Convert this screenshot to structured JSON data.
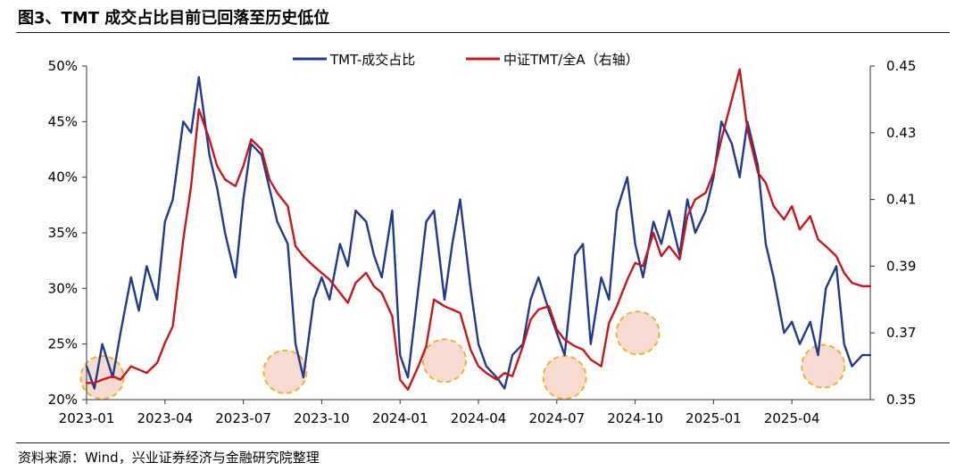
{
  "title": "图3、TMT 成交占比目前已回落至历史低位",
  "source": "资料来源：Wind，兴业证券经济与金融研究院整理",
  "colors": {
    "tmt": "#1f3a8f",
    "ratio": "#c8161d",
    "highlight_fill": "#f6d2c4",
    "highlight_stroke": "#f0b233"
  },
  "chart_data": {
    "type": "line",
    "x_ticks": [
      "2023-01",
      "2023-04",
      "2023-07",
      "2023-10",
      "2024-01",
      "2024-04",
      "2024-07",
      "2024-10",
      "2025-01",
      "2025-04"
    ],
    "x_range_months": [
      0,
      30
    ],
    "y_left": {
      "min": 0.2,
      "max": 0.5,
      "ticks": [
        "50%",
        "45%",
        "40%",
        "35%",
        "30%",
        "25%",
        "20%"
      ]
    },
    "y_right": {
      "min": 0.35,
      "max": 0.45,
      "ticks": [
        "0.45",
        "0.43",
        "0.41",
        "0.39",
        "0.37",
        "0.35"
      ]
    },
    "series": [
      {
        "name": "TMT-成交占比",
        "axis": "left",
        "x": [
          0,
          0.3,
          0.6,
          1.0,
          1.3,
          1.7,
          2.0,
          2.3,
          2.7,
          3.0,
          3.3,
          3.7,
          4.0,
          4.3,
          4.7,
          5.0,
          5.3,
          5.7,
          6.0,
          6.3,
          6.7,
          7.0,
          7.3,
          7.7,
          8.0,
          8.3,
          8.7,
          9.0,
          9.3,
          9.7,
          10.0,
          10.3,
          10.7,
          11.0,
          11.3,
          11.7,
          12.0,
          12.3,
          12.7,
          13.0,
          13.3,
          13.7,
          14.0,
          14.3,
          14.7,
          15.0,
          15.3,
          15.7,
          16.0,
          16.3,
          16.7,
          17.0,
          17.3,
          17.7,
          18.0,
          18.3,
          18.7,
          19.0,
          19.3,
          19.7,
          20.0,
          20.3,
          20.7,
          21.0,
          21.3,
          21.7,
          22.0,
          22.3,
          22.7,
          23.0,
          23.3,
          23.7,
          24.0,
          24.3,
          24.7,
          25.0,
          25.3,
          25.7,
          26.0,
          26.3,
          26.7,
          27.0,
          27.3,
          27.7,
          28.0,
          28.3,
          28.7,
          29.0,
          29.3,
          29.7,
          30.0
        ],
        "y": [
          0.23,
          0.21,
          0.25,
          0.22,
          0.26,
          0.31,
          0.28,
          0.32,
          0.29,
          0.36,
          0.38,
          0.45,
          0.44,
          0.49,
          0.42,
          0.39,
          0.35,
          0.31,
          0.38,
          0.43,
          0.42,
          0.39,
          0.36,
          0.34,
          0.25,
          0.22,
          0.29,
          0.31,
          0.29,
          0.34,
          0.32,
          0.37,
          0.36,
          0.33,
          0.31,
          0.37,
          0.24,
          0.22,
          0.3,
          0.36,
          0.37,
          0.29,
          0.34,
          0.38,
          0.3,
          0.25,
          0.23,
          0.22,
          0.21,
          0.24,
          0.25,
          0.29,
          0.31,
          0.28,
          0.26,
          0.24,
          0.33,
          0.34,
          0.25,
          0.31,
          0.29,
          0.37,
          0.4,
          0.34,
          0.31,
          0.36,
          0.34,
          0.37,
          0.33,
          0.38,
          0.35,
          0.37,
          0.4,
          0.45,
          0.43,
          0.4,
          0.45,
          0.41,
          0.34,
          0.31,
          0.26,
          0.27,
          0.25,
          0.27,
          0.24,
          0.3,
          0.32,
          0.25,
          0.23,
          0.24,
          0.24
        ]
      },
      {
        "name": "中证TMT/全A（右轴）",
        "axis": "right",
        "x": [
          0,
          0.3,
          0.6,
          1.0,
          1.3,
          1.7,
          2.0,
          2.3,
          2.7,
          3.0,
          3.3,
          3.7,
          4.0,
          4.3,
          4.7,
          5.0,
          5.3,
          5.7,
          6.0,
          6.3,
          6.7,
          7.0,
          7.3,
          7.7,
          8.0,
          8.3,
          8.7,
          9.0,
          9.3,
          9.7,
          10.0,
          10.3,
          10.7,
          11.0,
          11.3,
          11.7,
          12.0,
          12.3,
          12.7,
          13.0,
          13.3,
          13.7,
          14.0,
          14.3,
          14.7,
          15.0,
          15.3,
          15.7,
          16.0,
          16.3,
          16.7,
          17.0,
          17.3,
          17.7,
          18.0,
          18.3,
          18.7,
          19.0,
          19.3,
          19.7,
          20.0,
          20.3,
          20.7,
          21.0,
          21.3,
          21.7,
          22.0,
          22.3,
          22.7,
          23.0,
          23.3,
          23.7,
          24.0,
          24.3,
          24.7,
          25.0,
          25.3,
          25.7,
          26.0,
          26.3,
          26.7,
          27.0,
          27.3,
          27.7,
          28.0,
          28.3,
          28.7,
          29.0,
          29.3,
          29.7,
          30.0
        ],
        "y": [
          0.355,
          0.355,
          0.356,
          0.357,
          0.356,
          0.36,
          0.359,
          0.358,
          0.361,
          0.367,
          0.372,
          0.398,
          0.414,
          0.437,
          0.428,
          0.42,
          0.416,
          0.414,
          0.42,
          0.428,
          0.425,
          0.416,
          0.412,
          0.408,
          0.396,
          0.393,
          0.39,
          0.388,
          0.386,
          0.382,
          0.379,
          0.385,
          0.388,
          0.384,
          0.382,
          0.375,
          0.356,
          0.353,
          0.36,
          0.366,
          0.38,
          0.378,
          0.377,
          0.376,
          0.365,
          0.36,
          0.358,
          0.356,
          0.358,
          0.357,
          0.366,
          0.374,
          0.377,
          0.378,
          0.371,
          0.368,
          0.366,
          0.365,
          0.362,
          0.36,
          0.373,
          0.378,
          0.386,
          0.391,
          0.39,
          0.4,
          0.393,
          0.396,
          0.392,
          0.405,
          0.41,
          0.412,
          0.418,
          0.428,
          0.44,
          0.449,
          0.431,
          0.418,
          0.415,
          0.408,
          0.404,
          0.408,
          0.401,
          0.405,
          0.398,
          0.396,
          0.393,
          0.388,
          0.385,
          0.384,
          0.384
        ]
      }
    ],
    "highlight_circles_month": [
      0.6,
      7.6,
      13.7,
      18.3,
      21.1,
      28.2
    ],
    "highlight_circles_level": [
      0.22,
      0.225,
      0.235,
      0.22,
      0.26,
      0.23
    ]
  }
}
